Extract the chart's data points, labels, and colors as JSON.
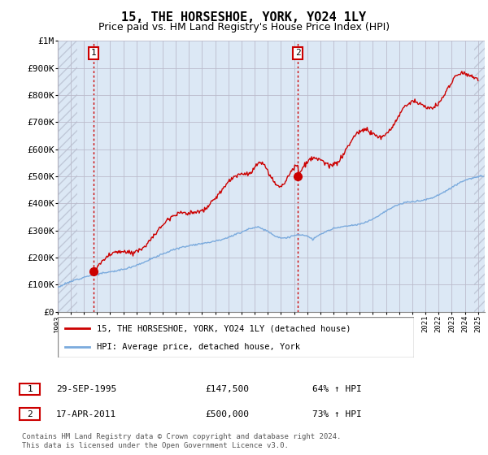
{
  "title": "15, THE HORSESHOE, YORK, YO24 1LY",
  "subtitle": "Price paid vs. HM Land Registry's House Price Index (HPI)",
  "ylabel_ticks": [
    "£0",
    "£100K",
    "£200K",
    "£300K",
    "£400K",
    "£500K",
    "£600K",
    "£700K",
    "£800K",
    "£900K",
    "£1M"
  ],
  "ylim": [
    0,
    1000000
  ],
  "xlim_start": 1993.0,
  "xlim_end": 2025.5,
  "sale1_date": 1995.75,
  "sale1_price": 147500,
  "sale1_label": "1",
  "sale2_date": 2011.29,
  "sale2_price": 500000,
  "sale2_label": "2",
  "legend_line1": "15, THE HORSESHOE, YORK, YO24 1LY (detached house)",
  "legend_line2": "HPI: Average price, detached house, York",
  "footer": "Contains HM Land Registry data © Crown copyright and database right 2024.\nThis data is licensed under the Open Government Licence v3.0.",
  "hpi_color": "#7aaadd",
  "price_color": "#cc0000",
  "bg_color": "#dce8f5",
  "hatch_color": "#c0c8d8",
  "grid_color": "#bbbbcc",
  "annotation_box_color": "#cc0000",
  "title_fontsize": 11,
  "subtitle_fontsize": 9
}
